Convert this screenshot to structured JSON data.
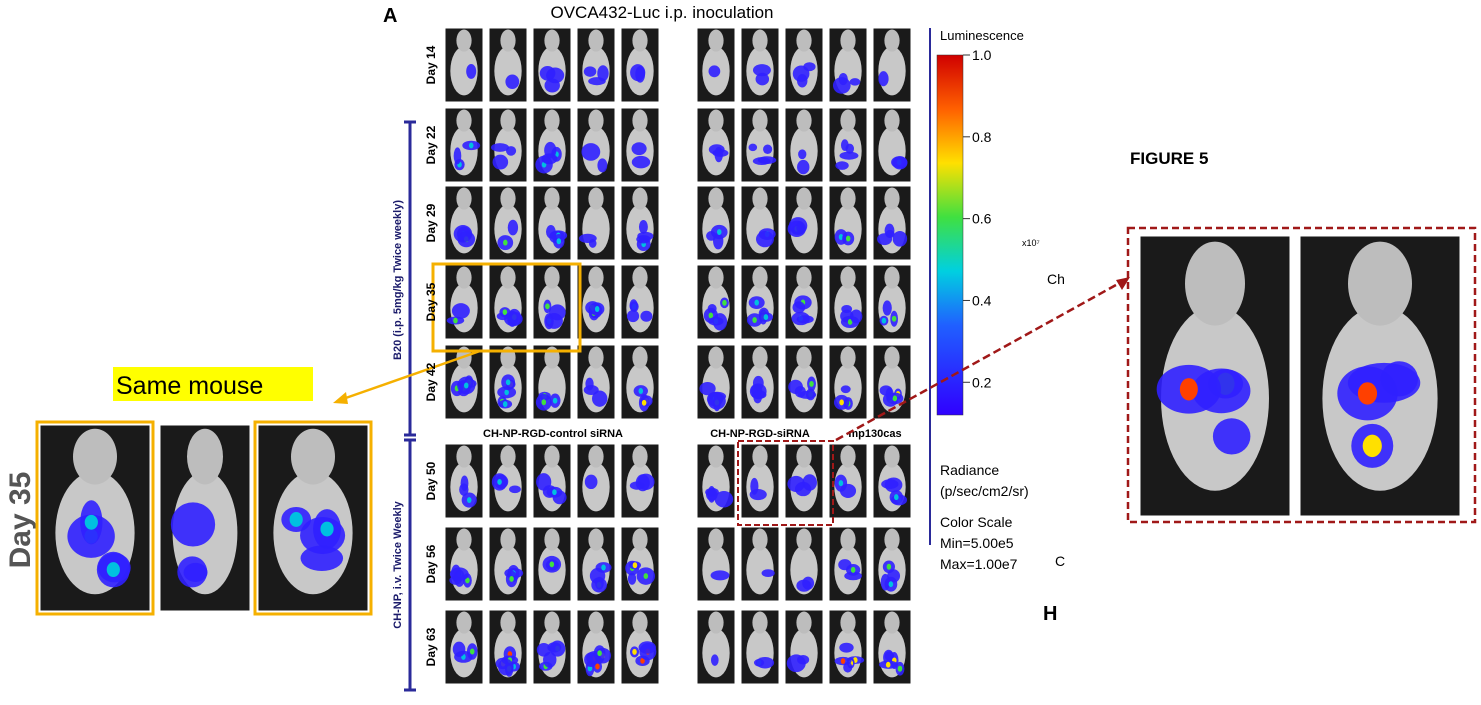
{
  "panel_label": "A",
  "title": "OVCA432-Luc i.p. inoculation",
  "days": [
    "Day 14",
    "Day 22",
    "Day 29",
    "Day 35",
    "Day 42",
    "Day 50",
    "Day 56",
    "Day 63"
  ],
  "group_labels": [
    "B20 (i.p. 5mg/kg Twice weekly)",
    "CH-NP, i.v. Twice Weekly"
  ],
  "column_labels": [
    "CH-NP-RGD-control siRNA",
    "CH-NP-RGD-siRNA",
    "mp130cas"
  ],
  "colorbar": {
    "title": "Luminescence",
    "lim": [
      0.12,
      1.0
    ],
    "ticks": [
      {
        "value": 1.0,
        "label": "1.0"
      },
      0.8,
      0.6,
      0.4,
      0.2
    ],
    "multiplier": "x10⁷",
    "channel": "Ch",
    "radiance_label": "Radiance",
    "radiance_unit": "(p/sec/cm2/sr)",
    "scale_title": "Color Scale",
    "min": "Min=5.00e5",
    "max": "Max=1.00e7"
  },
  "letter_c": "C",
  "letter_h": "H",
  "figure_label": "FIGURE 5",
  "callout": "Same mouse",
  "zoom_day": "Day 35"
}
